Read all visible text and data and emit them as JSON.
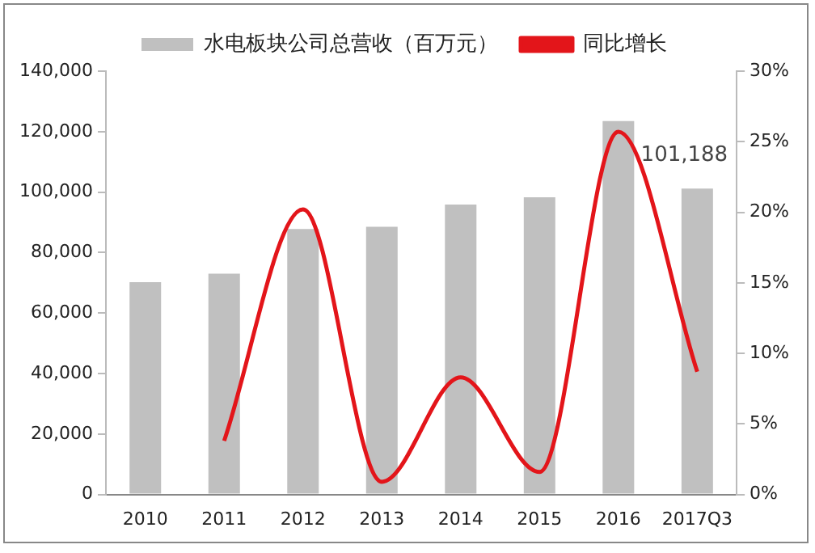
{
  "chart_data": {
    "type": "bar",
    "categories": [
      "2010",
      "2011",
      "2012",
      "2013",
      "2014",
      "2015",
      "2016",
      "2017Q3"
    ],
    "series": [
      {
        "name": "水电板块公司总营收（百万元）",
        "color": "#c0c0c0",
        "values": [
          70200,
          73000,
          87800,
          88500,
          95900,
          98300,
          123500,
          101188
        ],
        "value_labels": [
          null,
          null,
          null,
          null,
          null,
          null,
          null,
          "101,188"
        ]
      },
      {
        "name": "同比增长",
        "type": "line",
        "axis": "y2",
        "color": "#e3151a",
        "values": [
          null,
          3.8,
          20.2,
          0.9,
          8.3,
          1.6,
          25.7,
          8.7
        ]
      }
    ],
    "ylim": [
      0,
      140000
    ],
    "yticks": [
      {
        "value": 0,
        "label": "0"
      },
      {
        "value": 20000,
        "label": "20,000"
      },
      {
        "value": 40000,
        "label": "40,000"
      },
      {
        "value": 60000,
        "label": "60,000"
      },
      {
        "value": 80000,
        "label": "80,000"
      },
      {
        "value": 100000,
        "label": "100,000"
      },
      {
        "value": 120000,
        "label": "120,000"
      },
      {
        "value": 140000,
        "label": "140,000"
      }
    ],
    "y2lim": [
      0,
      30
    ],
    "y2ticks": [
      {
        "value": 0,
        "label": "0%"
      },
      {
        "value": 5,
        "label": "5%"
      },
      {
        "value": 10,
        "label": "10%"
      },
      {
        "value": 15,
        "label": "15%"
      },
      {
        "value": 20,
        "label": "20%"
      },
      {
        "value": 25,
        "label": "25%"
      },
      {
        "value": 30,
        "label": "30%"
      }
    ],
    "grid": false,
    "legend": "top",
    "marker": "none"
  }
}
